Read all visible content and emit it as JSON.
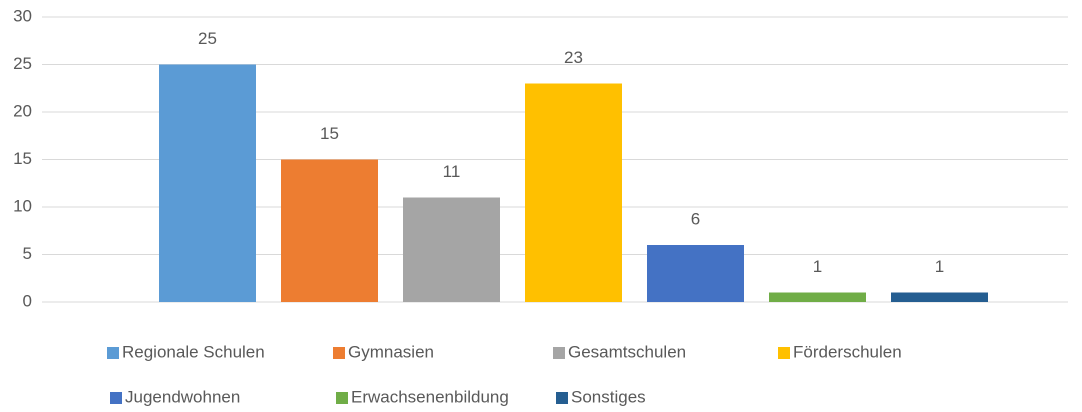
{
  "chart_data": {
    "type": "bar",
    "series": [
      {
        "name": "Regionale Schulen",
        "color": "#5b9bd5",
        "values": [
          25
        ]
      },
      {
        "name": "Gymnasien",
        "color": "#ed7d31",
        "values": [
          15
        ]
      },
      {
        "name": "Gesamtschulen",
        "color": "#a5a5a5",
        "values": [
          11
        ]
      },
      {
        "name": "Förderschulen",
        "color": "#ffc000",
        "values": [
          23
        ]
      },
      {
        "name": "Jugendwohnen",
        "color": "#4472c4",
        "values": [
          6
        ]
      },
      {
        "name": "Erwachsenenbildung",
        "color": "#70ad47",
        "values": [
          1
        ]
      },
      {
        "name": "Sonstiges",
        "color": "#255e91",
        "values": [
          1
        ]
      }
    ],
    "ylim": [
      0,
      30
    ],
    "yticks": [
      0,
      5,
      10,
      15,
      20,
      25,
      30
    ],
    "grid": true,
    "legend": "bottom"
  }
}
